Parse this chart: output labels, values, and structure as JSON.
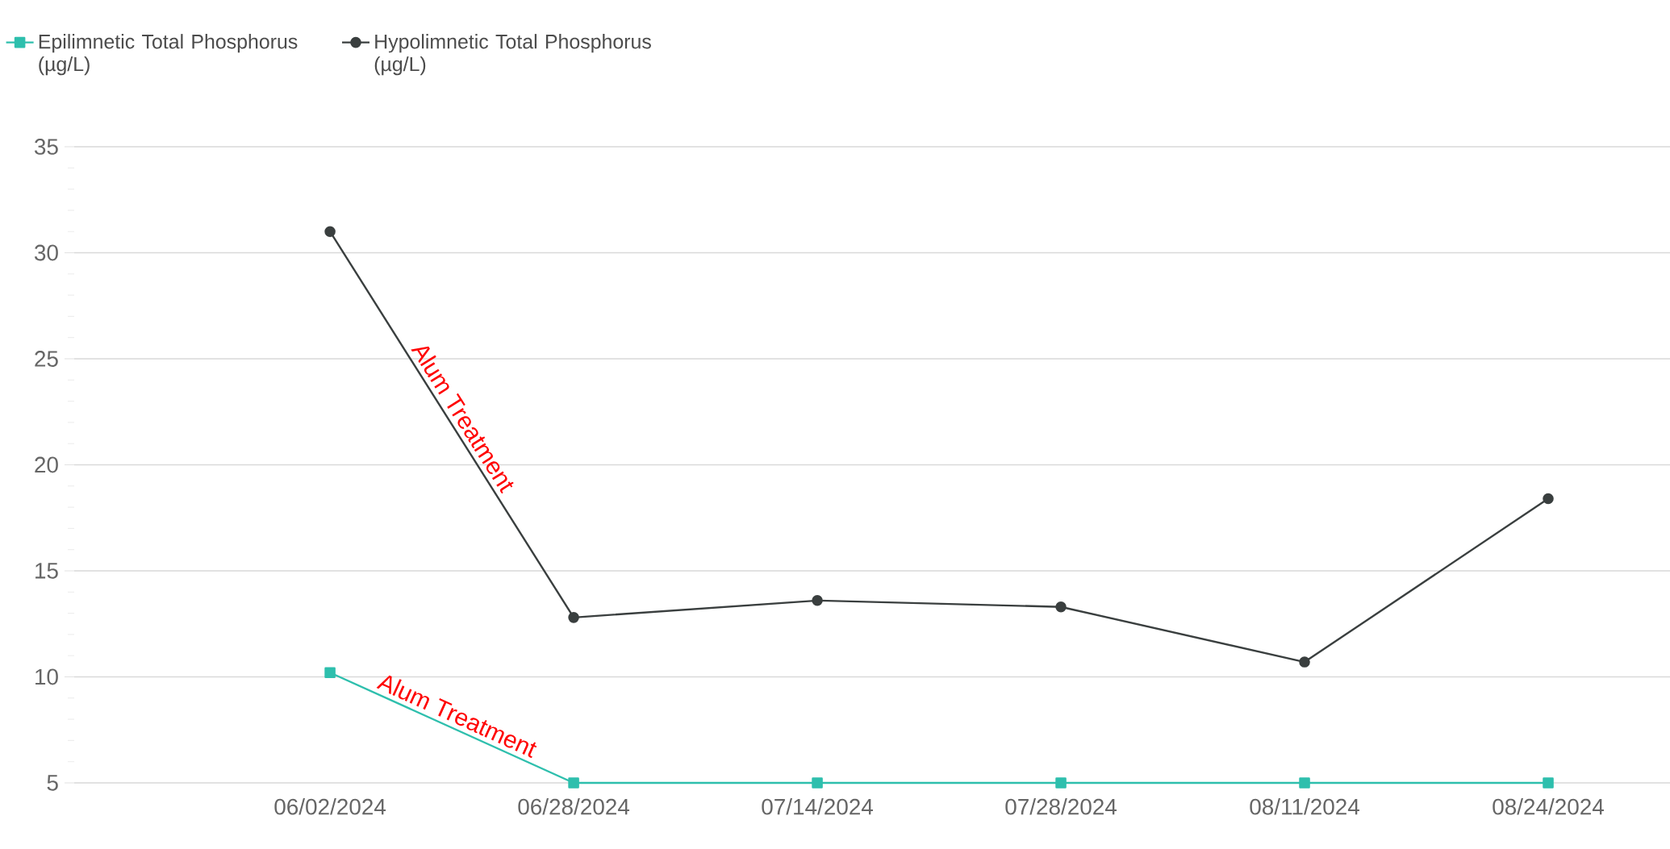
{
  "chart_data": {
    "type": "line",
    "categories": [
      "06/02/2024",
      "06/28/2024",
      "07/14/2024",
      "07/28/2024",
      "08/11/2024",
      "08/24/2024"
    ],
    "series": [
      {
        "name": "Epilimnetic Total Phosphorus (µg/L)",
        "color": "#2ebfad",
        "marker": "square",
        "values": [
          10.2,
          5,
          5,
          5,
          5,
          5
        ]
      },
      {
        "name": "Hypolimnetic Total Phosphorus (µg/L)",
        "color": "#3a3f3f",
        "marker": "circle",
        "values": [
          31,
          12.8,
          13.6,
          13.3,
          10.7,
          18.4
        ]
      }
    ],
    "ylim": [
      5,
      35
    ],
    "yticks": [
      5,
      10,
      15,
      20,
      25,
      30,
      35
    ],
    "grid": "y",
    "legend": "top left",
    "line_style": "solid",
    "annotations": [
      "Alum Treatment",
      "Alum Treatment"
    ]
  }
}
